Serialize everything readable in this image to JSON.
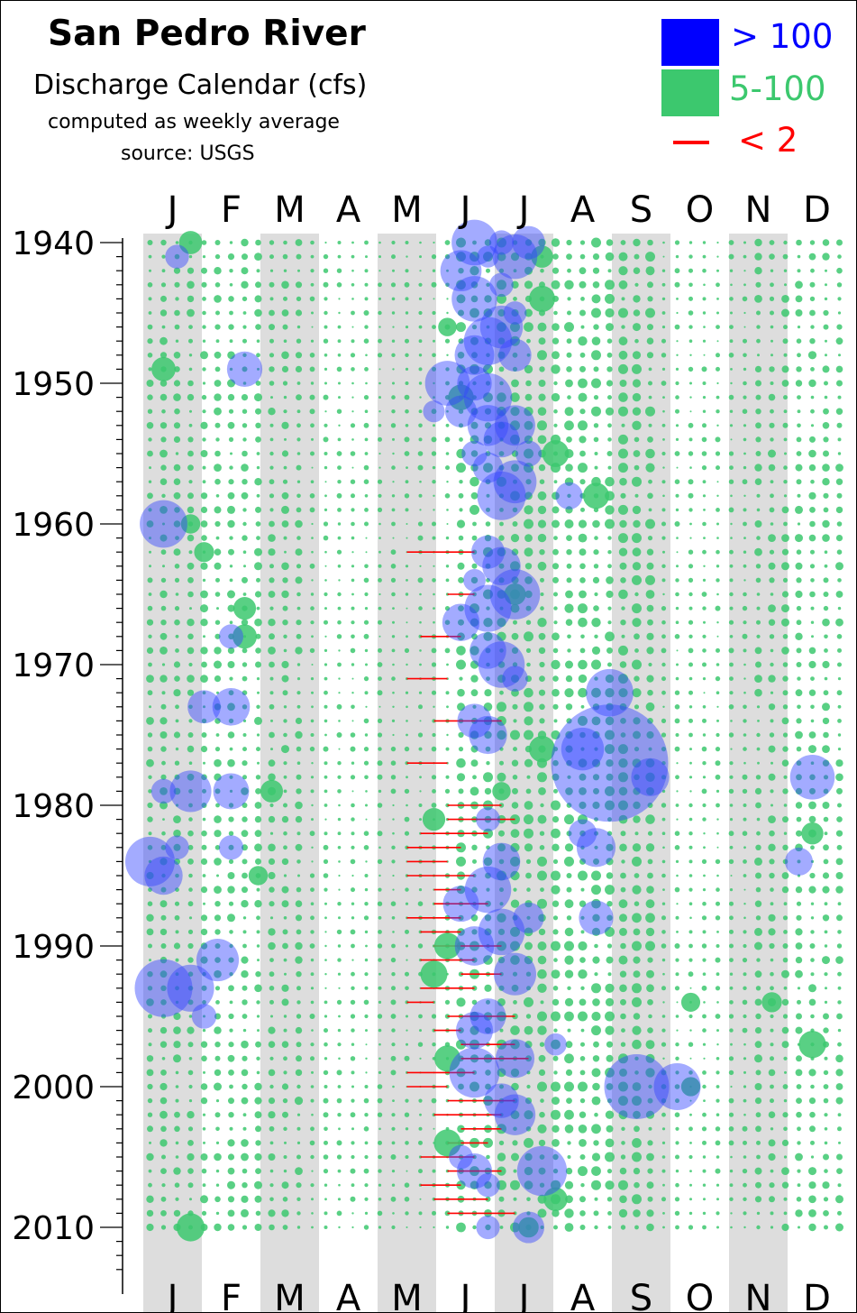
{
  "chart_data": {
    "type": "scatter",
    "title": "San Pedro River",
    "subtitle": "Discharge Calendar (cfs)",
    "notes": [
      "computed as weekly average",
      "source: USGS"
    ],
    "legend": [
      {
        "label": "> 100",
        "color": "#0000ff",
        "marker": "square"
      },
      {
        "label": "5-100",
        "color": "#3cc86e",
        "marker": "square"
      },
      {
        "label": "< 2",
        "color": "#ff0000",
        "marker": "line"
      }
    ],
    "months": [
      "J",
      "F",
      "M",
      "A",
      "M",
      "J",
      "J",
      "A",
      "S",
      "O",
      "N",
      "D"
    ],
    "y_ticks": [
      1940,
      1950,
      1960,
      1970,
      1980,
      1990,
      2000,
      2010
    ],
    "ylim": [
      1940,
      2014
    ],
    "x": "week of year",
    "y": "year",
    "series": [
      {
        "name": "> 100",
        "points": [
          [
            1940,
            25
          ],
          [
            1940,
            27
          ],
          [
            1940,
            29
          ],
          [
            1941,
            3
          ],
          [
            1941,
            26
          ],
          [
            1941,
            28
          ],
          [
            1942,
            24
          ],
          [
            1943,
            27
          ],
          [
            1944,
            25
          ],
          [
            1945,
            28
          ],
          [
            1946,
            27
          ],
          [
            1947,
            26
          ],
          [
            1948,
            25
          ],
          [
            1948,
            28
          ],
          [
            1949,
            8
          ],
          [
            1950,
            23
          ],
          [
            1950,
            25
          ],
          [
            1951,
            26
          ],
          [
            1952,
            22
          ],
          [
            1952,
            24
          ],
          [
            1953,
            26
          ],
          [
            1953,
            28
          ],
          [
            1954,
            27
          ],
          [
            1955,
            25
          ],
          [
            1955,
            29
          ],
          [
            1956,
            26
          ],
          [
            1957,
            28
          ],
          [
            1958,
            27
          ],
          [
            1958,
            32
          ],
          [
            1960,
            2
          ],
          [
            1962,
            26
          ],
          [
            1963,
            27
          ],
          [
            1964,
            25
          ],
          [
            1965,
            28
          ],
          [
            1966,
            26
          ],
          [
            1967,
            24
          ],
          [
            1968,
            7
          ],
          [
            1969,
            26
          ],
          [
            1970,
            27
          ],
          [
            1971,
            28
          ],
          [
            1972,
            35
          ],
          [
            1973,
            5
          ],
          [
            1973,
            7
          ],
          [
            1974,
            25
          ],
          [
            1975,
            26
          ],
          [
            1976,
            33
          ],
          [
            1977,
            35
          ],
          [
            1978,
            38
          ],
          [
            1978,
            50
          ],
          [
            1979,
            2
          ],
          [
            1979,
            4
          ],
          [
            1979,
            7
          ],
          [
            1981,
            26
          ],
          [
            1982,
            33
          ],
          [
            1983,
            3
          ],
          [
            1983,
            7
          ],
          [
            1983,
            34
          ],
          [
            1984,
            1
          ],
          [
            1984,
            27
          ],
          [
            1984,
            49
          ],
          [
            1985,
            2
          ],
          [
            1986,
            26
          ],
          [
            1987,
            24
          ],
          [
            1988,
            29
          ],
          [
            1988,
            34
          ],
          [
            1989,
            27
          ],
          [
            1990,
            25
          ],
          [
            1991,
            6
          ],
          [
            1992,
            28
          ],
          [
            1993,
            2
          ],
          [
            1993,
            4
          ],
          [
            1995,
            5
          ],
          [
            1995,
            26
          ],
          [
            1996,
            25
          ],
          [
            1997,
            31
          ],
          [
            1998,
            28
          ],
          [
            1999,
            25
          ],
          [
            2000,
            37
          ],
          [
            2000,
            40
          ],
          [
            2001,
            27
          ],
          [
            2002,
            28
          ],
          [
            2005,
            24
          ],
          [
            2006,
            25
          ],
          [
            2006,
            30
          ],
          [
            2007,
            26
          ],
          [
            2010,
            26
          ],
          [
            2010,
            29
          ]
        ]
      },
      {
        "name": "5-100",
        "points": [
          [
            1940,
            4
          ],
          [
            1941,
            30
          ],
          [
            1944,
            30
          ],
          [
            1946,
            23
          ],
          [
            1949,
            2
          ],
          [
            1951,
            24
          ],
          [
            1955,
            31
          ],
          [
            1958,
            34
          ],
          [
            1960,
            4
          ],
          [
            1962,
            5
          ],
          [
            1965,
            28
          ],
          [
            1966,
            8
          ],
          [
            1968,
            8
          ],
          [
            1976,
            30
          ],
          [
            1979,
            27
          ],
          [
            1979,
            10
          ],
          [
            1981,
            22
          ],
          [
            1982,
            50
          ],
          [
            1985,
            9
          ],
          [
            1990,
            23
          ],
          [
            1992,
            22
          ],
          [
            1994,
            41
          ],
          [
            1994,
            47
          ],
          [
            1997,
            50
          ],
          [
            1998,
            23
          ],
          [
            2000,
            41
          ],
          [
            2004,
            23
          ],
          [
            2008,
            31
          ],
          [
            2010,
            4
          ],
          [
            2010,
            29
          ]
        ]
      },
      {
        "name": "< 2",
        "points": []
      }
    ]
  }
}
